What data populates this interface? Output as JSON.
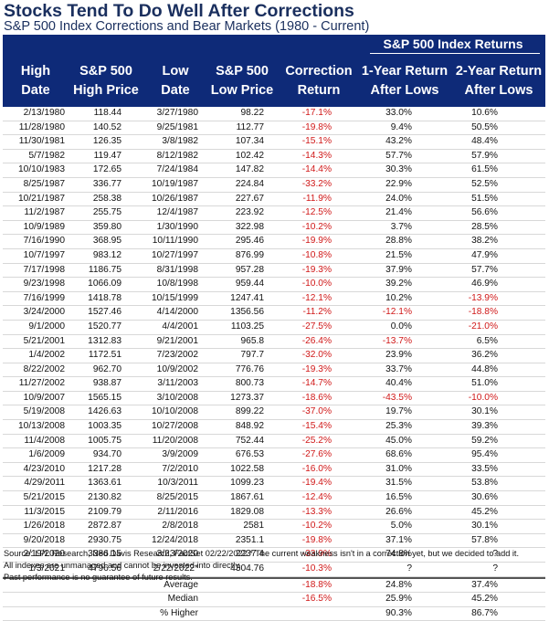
{
  "title": "Stocks Tend To Do Well After Corrections",
  "subtitle": "S&P 500 Index Corrections and Bear Markets (1980 - Current)",
  "header": {
    "returns_group": "S&P 500 Index Returns",
    "columns": [
      [
        "High",
        "Date"
      ],
      [
        "S&P 500",
        "High Price"
      ],
      [
        "Low",
        "Date"
      ],
      [
        "S&P 500",
        "Low Price"
      ],
      [
        "Correction",
        "Return"
      ],
      [
        "1-Year Return",
        "After Lows"
      ],
      [
        "2-Year Return",
        "After Lows"
      ]
    ]
  },
  "rows": [
    [
      "2/13/1980",
      "118.44",
      "3/27/1980",
      "98.22",
      "-17.1%",
      "33.0%",
      "10.6%"
    ],
    [
      "11/28/1980",
      "140.52",
      "9/25/1981",
      "112.77",
      "-19.8%",
      "9.4%",
      "50.5%"
    ],
    [
      "11/30/1981",
      "126.35",
      "3/8/1982",
      "107.34",
      "-15.1%",
      "43.2%",
      "48.4%"
    ],
    [
      "5/7/1982",
      "119.47",
      "8/12/1982",
      "102.42",
      "-14.3%",
      "57.7%",
      "57.9%"
    ],
    [
      "10/10/1983",
      "172.65",
      "7/24/1984",
      "147.82",
      "-14.4%",
      "30.3%",
      "61.5%"
    ],
    [
      "8/25/1987",
      "336.77",
      "10/19/1987",
      "224.84",
      "-33.2%",
      "22.9%",
      "52.5%"
    ],
    [
      "10/21/1987",
      "258.38",
      "10/26/1987",
      "227.67",
      "-11.9%",
      "24.0%",
      "51.5%"
    ],
    [
      "11/2/1987",
      "255.75",
      "12/4/1987",
      "223.92",
      "-12.5%",
      "21.4%",
      "56.6%"
    ],
    [
      "10/9/1989",
      "359.80",
      "1/30/1990",
      "322.98",
      "-10.2%",
      "3.7%",
      "28.5%"
    ],
    [
      "7/16/1990",
      "368.95",
      "10/11/1990",
      "295.46",
      "-19.9%",
      "28.8%",
      "38.2%"
    ],
    [
      "10/7/1997",
      "983.12",
      "10/27/1997",
      "876.99",
      "-10.8%",
      "21.5%",
      "47.9%"
    ],
    [
      "7/17/1998",
      "1186.75",
      "8/31/1998",
      "957.28",
      "-19.3%",
      "37.9%",
      "57.7%"
    ],
    [
      "9/23/1998",
      "1066.09",
      "10/8/1998",
      "959.44",
      "-10.0%",
      "39.2%",
      "46.9%"
    ],
    [
      "7/16/1999",
      "1418.78",
      "10/15/1999",
      "1247.41",
      "-12.1%",
      "10.2%",
      "-13.9%"
    ],
    [
      "3/24/2000",
      "1527.46",
      "4/14/2000",
      "1356.56",
      "-11.2%",
      "-12.1%",
      "-18.8%"
    ],
    [
      "9/1/2000",
      "1520.77",
      "4/4/2001",
      "1103.25",
      "-27.5%",
      "0.0%",
      "-21.0%"
    ],
    [
      "5/21/2001",
      "1312.83",
      "9/21/2001",
      "965.8",
      "-26.4%",
      "-13.7%",
      "6.5%"
    ],
    [
      "1/4/2002",
      "1172.51",
      "7/23/2002",
      "797.7",
      "-32.0%",
      "23.9%",
      "36.2%"
    ],
    [
      "8/22/2002",
      "962.70",
      "10/9/2002",
      "776.76",
      "-19.3%",
      "33.7%",
      "44.8%"
    ],
    [
      "11/27/2002",
      "938.87",
      "3/11/2003",
      "800.73",
      "-14.7%",
      "40.4%",
      "51.0%"
    ],
    [
      "10/9/2007",
      "1565.15",
      "3/10/2008",
      "1273.37",
      "-18.6%",
      "-43.5%",
      "-10.0%"
    ],
    [
      "5/19/2008",
      "1426.63",
      "10/10/2008",
      "899.22",
      "-37.0%",
      "19.7%",
      "30.1%"
    ],
    [
      "10/13/2008",
      "1003.35",
      "10/27/2008",
      "848.92",
      "-15.4%",
      "25.3%",
      "39.3%"
    ],
    [
      "11/4/2008",
      "1005.75",
      "11/20/2008",
      "752.44",
      "-25.2%",
      "45.0%",
      "59.2%"
    ],
    [
      "1/6/2009",
      "934.70",
      "3/9/2009",
      "676.53",
      "-27.6%",
      "68.6%",
      "95.4%"
    ],
    [
      "4/23/2010",
      "1217.28",
      "7/2/2010",
      "1022.58",
      "-16.0%",
      "31.0%",
      "33.5%"
    ],
    [
      "4/29/2011",
      "1363.61",
      "10/3/2011",
      "1099.23",
      "-19.4%",
      "31.5%",
      "53.8%"
    ],
    [
      "5/21/2015",
      "2130.82",
      "8/25/2015",
      "1867.61",
      "-12.4%",
      "16.5%",
      "30.6%"
    ],
    [
      "11/3/2015",
      "2109.79",
      "2/11/2016",
      "1829.08",
      "-13.3%",
      "26.6%",
      "45.2%"
    ],
    [
      "1/26/2018",
      "2872.87",
      "2/8/2018",
      "2581",
      "-10.2%",
      "5.0%",
      "30.1%"
    ],
    [
      "9/20/2018",
      "2930.75",
      "12/24/2018",
      "2351.1",
      "-19.8%",
      "37.1%",
      "57.8%"
    ],
    [
      "2/19/2020",
      "3386.15",
      "3/23/2020",
      "2237.4",
      "-33.9%",
      "74.8%",
      "?"
    ],
    [
      "1/3/2021",
      "4796.56",
      "2/22/2022*",
      "4304.76",
      "-10.3%",
      "?",
      "?"
    ]
  ],
  "summary": [
    {
      "label": "Average",
      "correction": "-18.8%",
      "r1": "24.8%",
      "r2": "37.4%"
    },
    {
      "label": "Median",
      "correction": "-16.5%",
      "r1": "25.9%",
      "r2": "45.2%"
    },
    {
      "label": "% Higher",
      "correction": "",
      "r1": "90.3%",
      "r2": "86.7%"
    }
  ],
  "footnotes": [
    "Source: LPL Research, Ned Davis Research, FactSet 02/22/2022  * The current weakness isn't in a correction yet, but we decided to add it.",
    "All indexes are unmanaged and cannot be invested into directly.",
    "Past performance is no guarantee of future results."
  ],
  "colors": {
    "header_bg": "#0e2a78",
    "title": "#1a2f5e",
    "negative": "#d01818"
  }
}
